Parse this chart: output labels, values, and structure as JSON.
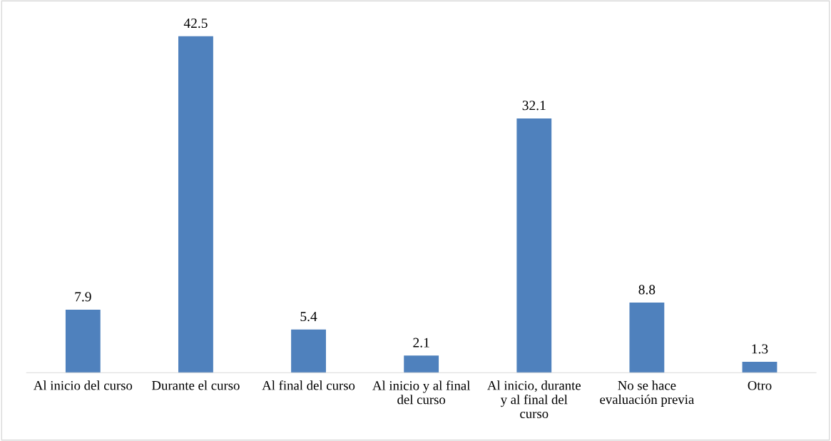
{
  "chart_data": {
    "type": "bar",
    "categories": [
      "Al inicio del curso",
      "Durante el curso",
      "Al final del curso",
      "Al inicio y al final\ndel curso",
      "Al inicio, durante\ny al final del\ncurso",
      "No se hace\nevaluación previa",
      "Otro"
    ],
    "values": [
      7.9,
      42.5,
      5.4,
      2.1,
      32.1,
      8.8,
      1.3
    ],
    "color": "#4f81bd",
    "data_labels": true,
    "tick_labels": "x",
    "grid": false,
    "legend": false
  }
}
